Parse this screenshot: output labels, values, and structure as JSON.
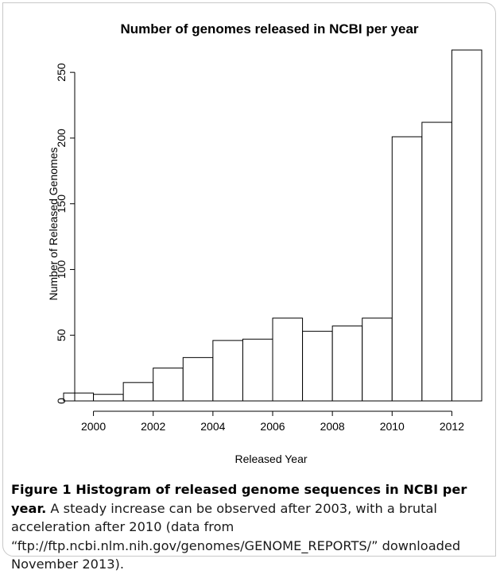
{
  "chart_data": {
    "type": "bar",
    "title": "Number of genomes released in NCBI per year",
    "xlabel": "Released Year",
    "ylabel": "Number of Released Genomes",
    "bin_width": 1,
    "bins": [
      {
        "start": 1999,
        "end": 2000,
        "value": 6
      },
      {
        "start": 2000,
        "end": 2001,
        "value": 5
      },
      {
        "start": 2001,
        "end": 2002,
        "value": 14
      },
      {
        "start": 2002,
        "end": 2003,
        "value": 25
      },
      {
        "start": 2003,
        "end": 2004,
        "value": 33
      },
      {
        "start": 2004,
        "end": 2005,
        "value": 46
      },
      {
        "start": 2005,
        "end": 2006,
        "value": 47
      },
      {
        "start": 2006,
        "end": 2007,
        "value": 63
      },
      {
        "start": 2007,
        "end": 2008,
        "value": 53
      },
      {
        "start": 2008,
        "end": 2009,
        "value": 57
      },
      {
        "start": 2009,
        "end": 2010,
        "value": 63
      },
      {
        "start": 2010,
        "end": 2011,
        "value": 201
      },
      {
        "start": 2011,
        "end": 2012,
        "value": 212
      },
      {
        "start": 2012,
        "end": 2013,
        "value": 267
      }
    ],
    "xlim": [
      1999,
      2013
    ],
    "ylim": [
      0,
      267
    ],
    "xticks": [
      "2000",
      "2002",
      "2004",
      "2006",
      "2008",
      "2010",
      "2012"
    ],
    "yticks": [
      "0",
      "50",
      "100",
      "150",
      "200",
      "250"
    ],
    "grid": false,
    "legend": "none"
  },
  "caption": {
    "label": "Figure 1 Histogram of released genome sequences in NCBI per year.",
    "text": " A steady increase can be observed after 2003, with a brutal acceleration after 2010 (data from “ftp://ftp.ncbi.nlm.nih.gov/genomes/GENOME_REPORTS/” downloaded November 2013)."
  },
  "colors": {
    "bar_fill": "#ffffff",
    "bar_stroke": "#000000",
    "frame": "#c8c8c8"
  }
}
